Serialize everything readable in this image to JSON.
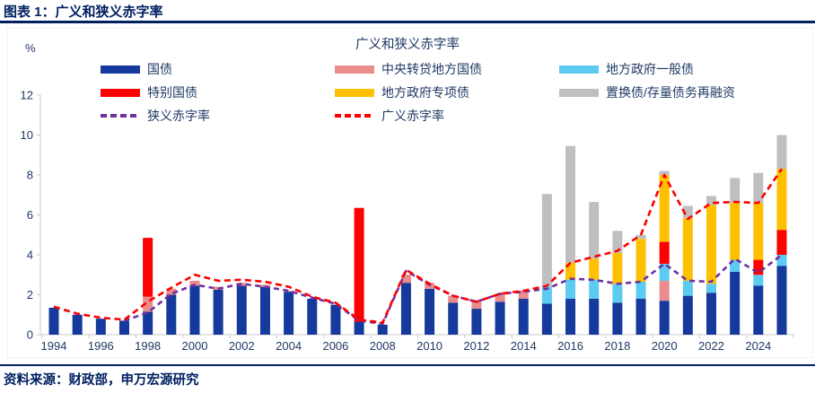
{
  "header": {
    "title": "图表 1：广义和狭义赤字率"
  },
  "footer": {
    "source": "资料来源：财政部，申万宏源研究"
  },
  "chart_data": {
    "type": "bar",
    "subtype": "stacked-bars-with-dashed-lines",
    "title": "广义和狭义赤字率",
    "unit": "%",
    "ylim": [
      0,
      12
    ],
    "yticks": [
      0,
      2,
      4,
      6,
      8,
      10,
      12
    ],
    "grid": false,
    "legend_position": "top",
    "years": [
      1994,
      1995,
      1996,
      1997,
      1998,
      1999,
      2000,
      2001,
      2002,
      2003,
      2004,
      2005,
      2006,
      2007,
      2008,
      2009,
      2010,
      2011,
      2012,
      2013,
      2014,
      2015,
      2016,
      2017,
      2018,
      2019,
      2020,
      2021,
      2022,
      2023,
      2024,
      2025
    ],
    "x_labels": [
      "1994",
      "1996",
      "1998",
      "2000",
      "2002",
      "2004",
      "2006",
      "2008",
      "2010",
      "2012",
      "2014",
      "2016",
      "2018",
      "2020",
      "2022",
      "2024"
    ],
    "series": [
      {
        "name": "国债",
        "color": "#15399C",
        "values": [
          1.35,
          1.0,
          0.8,
          0.7,
          1.15,
          2.0,
          2.45,
          2.25,
          2.45,
          2.4,
          2.15,
          1.8,
          1.5,
          0.65,
          0.5,
          2.6,
          2.3,
          1.6,
          1.3,
          1.65,
          1.8,
          1.55,
          1.8,
          1.8,
          1.6,
          1.8,
          1.7,
          1.95,
          2.1,
          3.15,
          2.45,
          3.45
        ]
      },
      {
        "name": "中央转贷地方国债",
        "color": "#E88C8C",
        "values": [
          0,
          0,
          0,
          0,
          0.75,
          0.3,
          0.25,
          0.15,
          0.15,
          0.1,
          0.05,
          0,
          0,
          0,
          0,
          0.4,
          0.3,
          0.35,
          0.35,
          0.4,
          0.4,
          0,
          0,
          0,
          0,
          0,
          1.0,
          0,
          0,
          0,
          0,
          0
        ]
      },
      {
        "name": "地方政府一般债",
        "color": "#5BCBF2",
        "values": [
          0,
          0,
          0,
          0,
          0,
          0,
          0,
          0,
          0,
          0,
          0,
          0,
          0,
          0,
          0,
          0,
          0,
          0,
          0,
          0,
          0,
          0.85,
          0.95,
          0.95,
          0.95,
          0.85,
          0.85,
          0.75,
          0.45,
          0.6,
          0.55,
          0.55
        ]
      },
      {
        "name": "特别国债",
        "color": "#FE0000",
        "values": [
          0,
          0,
          0,
          0,
          2.95,
          0,
          0,
          0,
          0,
          0,
          0,
          0,
          0,
          5.7,
          0,
          0,
          0,
          0,
          0,
          0,
          0,
          0,
          0,
          0,
          0,
          0,
          1.1,
          0,
          0,
          0,
          0.75,
          1.25
        ]
      },
      {
        "name": "地方政府专项债",
        "color": "#FFC000",
        "values": [
          0,
          0,
          0,
          0,
          0,
          0,
          0,
          0,
          0,
          0,
          0,
          0,
          0,
          0,
          0,
          0,
          0,
          0,
          0,
          0,
          0,
          0,
          0.85,
          1.05,
          1.55,
          2.15,
          3.35,
          3.15,
          3.95,
          2.85,
          2.85,
          3.05
        ]
      },
      {
        "name": "置换债/存量债务再融资",
        "color": "#BFBFBF",
        "values": [
          0,
          0,
          0,
          0,
          0,
          0,
          0,
          0,
          0,
          0,
          0,
          0,
          0,
          0,
          0,
          0,
          0,
          0,
          0,
          0,
          0,
          4.65,
          5.85,
          2.85,
          1.1,
          0.2,
          0.2,
          0.6,
          0.45,
          1.25,
          1.5,
          1.7
        ]
      }
    ],
    "lines": [
      {
        "name": "狭义赤字率",
        "color": "#7030A0",
        "values": [
          null,
          null,
          null,
          0.7,
          1.1,
          2.05,
          2.5,
          2.3,
          2.55,
          2.4,
          2.2,
          1.85,
          1.55,
          0.7,
          0.55,
          3.2,
          2.5,
          1.95,
          1.65,
          2.05,
          2.15,
          2.3,
          2.8,
          2.75,
          2.55,
          2.65,
          3.55,
          2.7,
          2.65,
          3.8,
          3.1,
          4.0
        ]
      },
      {
        "name": "广义赤字率",
        "color": "#FE0000",
        "values": [
          1.4,
          1.05,
          0.85,
          0.75,
          1.65,
          2.35,
          3.0,
          2.7,
          2.75,
          2.65,
          2.4,
          1.9,
          1.6,
          0.75,
          0.6,
          3.25,
          2.55,
          1.95,
          1.65,
          2.05,
          2.2,
          2.45,
          3.6,
          3.9,
          4.2,
          5.0,
          8.0,
          5.8,
          6.6,
          6.65,
          6.6,
          8.3
        ]
      }
    ],
    "legend_columns": [
      {
        "items": [
          {
            "label": "国债",
            "color": "#15399C",
            "style": "solid"
          },
          {
            "label": "特别国债",
            "color": "#FE0000",
            "style": "solid"
          },
          {
            "label": "狭义赤字率",
            "color": "#7030A0",
            "style": "dash"
          }
        ]
      },
      {
        "items": [
          {
            "label": "中央转贷地方国债",
            "color": "#E88C8C",
            "style": "solid"
          },
          {
            "label": "地方政府专项债",
            "color": "#FFC000",
            "style": "solid"
          },
          {
            "label": "广义赤字率",
            "color": "#FE0000",
            "style": "dash"
          }
        ]
      },
      {
        "items": [
          {
            "label": "地方政府一般债",
            "color": "#5BCBF2",
            "style": "solid"
          },
          {
            "label": "置换债/存量债务再融资",
            "color": "#BFBFBF",
            "style": "solid"
          }
        ]
      }
    ]
  }
}
